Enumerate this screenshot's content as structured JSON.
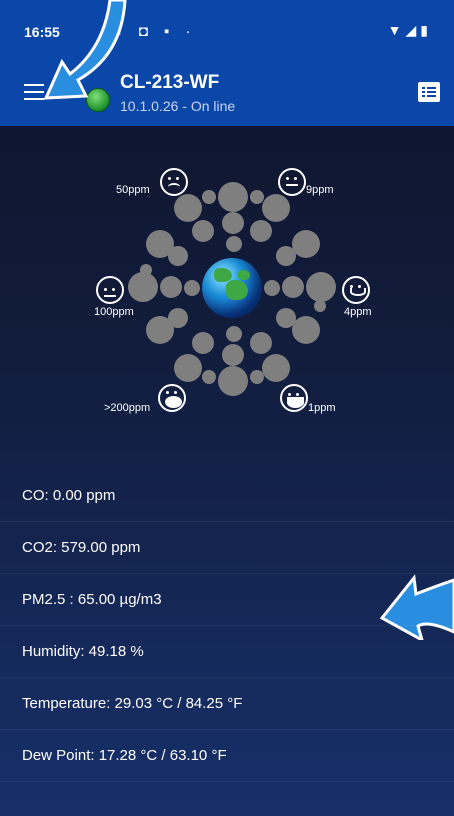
{
  "statusbar": {
    "time": "16:55",
    "left_icons": "✕ ◘ ▪ ·",
    "right_icons": "▼◢▮"
  },
  "appbar": {
    "title": "CL-213-WF",
    "subtitle": "10.1.0.26 - On line"
  },
  "scale": {
    "labels": {
      "p50": "50ppm",
      "p9": "9ppm",
      "p100": "100ppm",
      "p4": "4ppm",
      "p200": ">200ppm",
      "p1": "1ppm"
    }
  },
  "readings": [
    "CO: 0.00 ppm",
    "CO2: 579.00 ppm",
    "PM2.5 : 65.00 µg/m3",
    "Humidity: 49.18 %",
    "Temperature: 29.03 °C / 84.25 °F",
    "Dew Point: 17.28 °C / 63.10 °F"
  ],
  "colors": {
    "primary": "#0a47a8",
    "online_dot": "#1d8f2a",
    "arrow": "#2a8ee0"
  }
}
